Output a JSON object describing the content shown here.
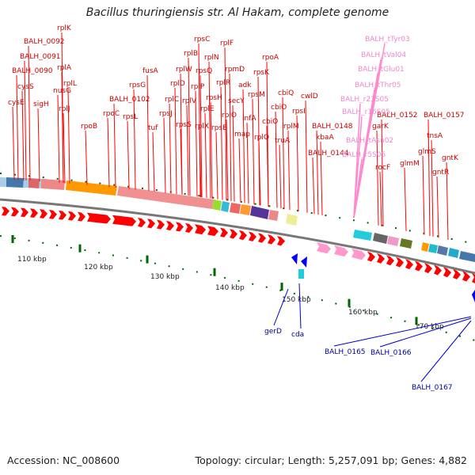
{
  "title": "Bacillus thuringiensis str. Al Hakam, complete genome",
  "footer": {
    "accession": "Accession: NC_008600",
    "topology": "Topology: circular; Length: 5,257,091 bp; Genes: 4,882"
  },
  "colors": {
    "forward_gene": "#ff0000",
    "reverse_gene": "#0000ff",
    "rrna_label": "#ee88cc",
    "label_red": "#cc0000",
    "label_blue": "#000099",
    "tick_green": "#006600",
    "backbone": "#777777"
  },
  "scale_labels": [
    "110 kbp",
    "120 kbp",
    "130 kbp",
    "140 kbp",
    "150 kbp",
    "160 kbp",
    "170 kbp"
  ],
  "forward_labels": [
    "rplK",
    "BALH_0092",
    "BALH_0091",
    "rplA",
    "BALH_0090",
    "cysS",
    "nusG",
    "rplL",
    "cysE",
    "sigH",
    "rplJ",
    "rpoB",
    "rpoC",
    "rpsG",
    "BALH_0102",
    "rpsL",
    "fusA",
    "tuf",
    "rpsC",
    "rplB",
    "rplF",
    "rplW",
    "rplN",
    "rpsQ",
    "rplD",
    "rplP",
    "rpmD",
    "rplR",
    "rplC",
    "rplV",
    "rplE",
    "rpsH",
    "rpsJ",
    "rpsS",
    "rplX",
    "rpsE",
    "rplO",
    "rpsM",
    "adk",
    "secY",
    "infA",
    "rpsK",
    "rpoA",
    "map",
    "cbiQ",
    "cbiO",
    "cbiO",
    "rplQ",
    "truA",
    "rpsI",
    "rplM",
    "cwlD",
    "kbaA",
    "BALH_0148",
    "BALH_0144",
    "BALH_0152",
    "BALH_0157",
    "garK",
    "rocF",
    "glmM",
    "glmS",
    "tnsA",
    "gntK",
    "gntR"
  ],
  "rrna_labels": [
    "BALH_tTyr03",
    "BALH_tVal04",
    "BALH_tGlu01",
    "BALH_tThr05",
    "BALH_r23S05",
    "BALH_r16S05",
    "BALH_tAsn02",
    "BALH_r5S05"
  ],
  "reverse_labels": [
    "gerD",
    "cda",
    "BALH_0165",
    "BALH_0166",
    "BALH_0167"
  ]
}
